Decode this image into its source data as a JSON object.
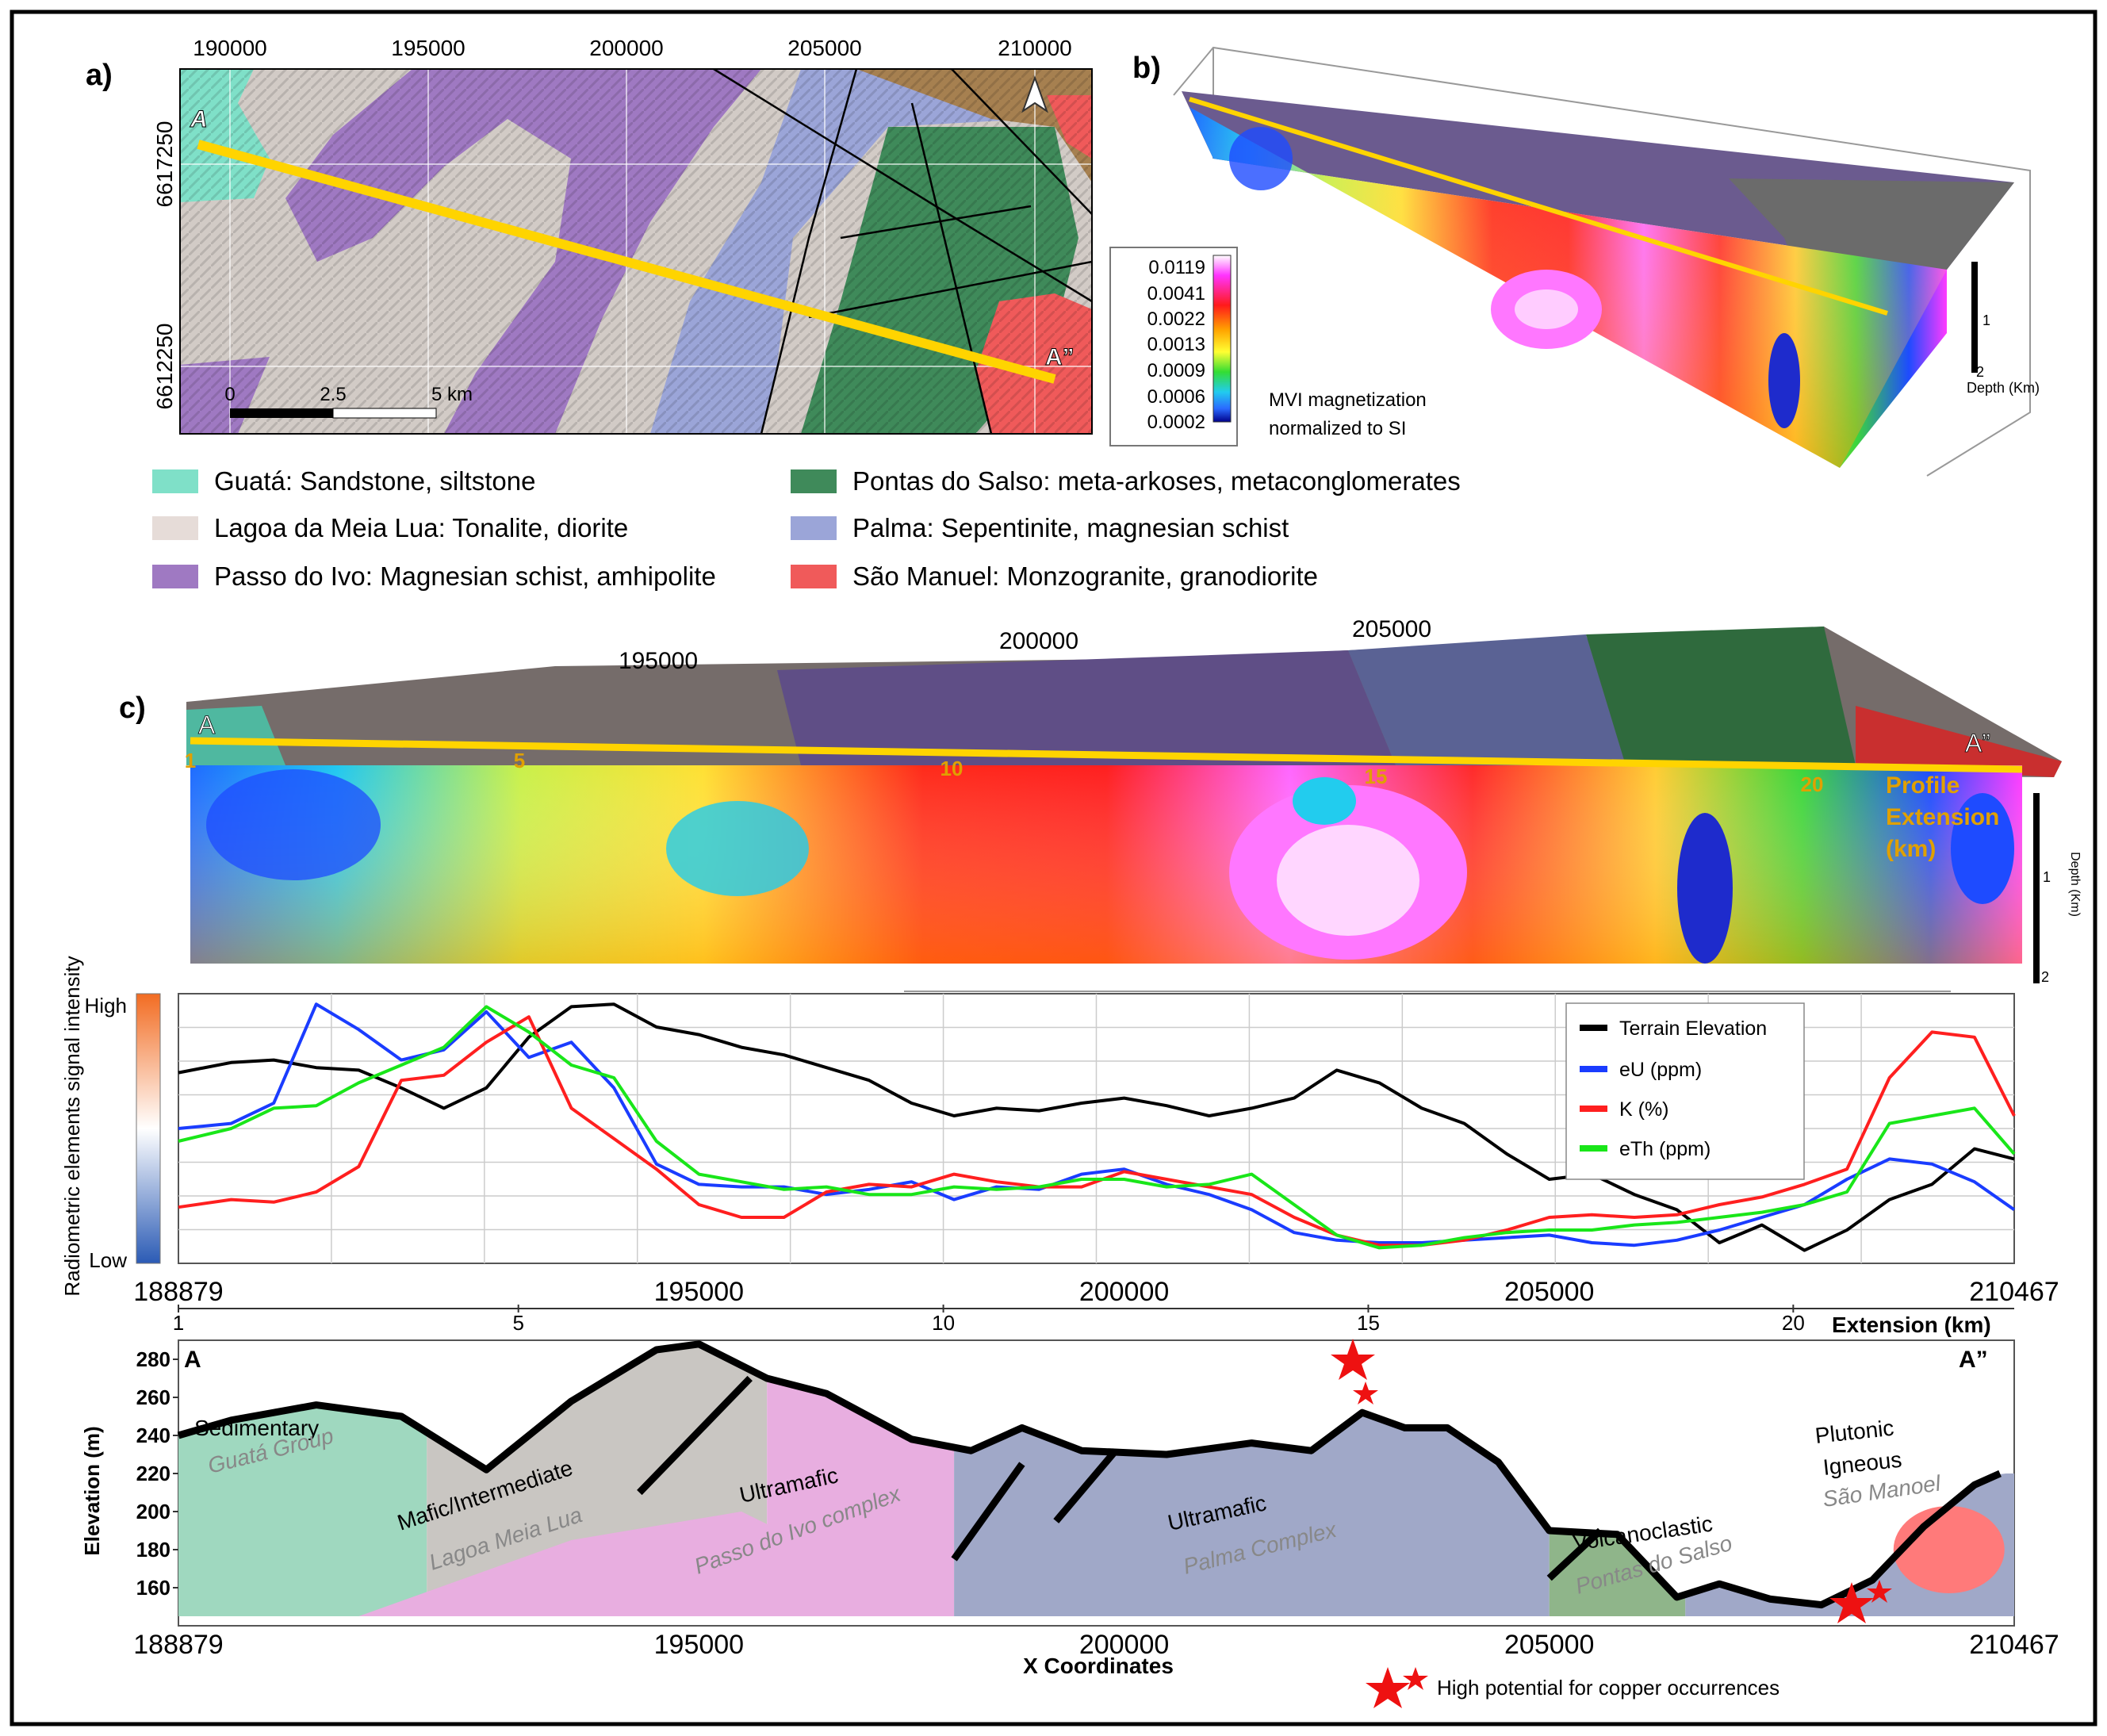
{
  "panel_a": {
    "label": "a)",
    "x_ticks": [
      "190000",
      "195000",
      "200000",
      "205000",
      "210000"
    ],
    "y_ticks": [
      "6617250",
      "6612250"
    ],
    "profile_start": "A",
    "profile_end": "A”",
    "north_arrow": "north-arrow-icon",
    "scale_labels": [
      "0",
      "2.5",
      "5 km"
    ]
  },
  "panel_b": {
    "label": "b)",
    "colorbar_values": [
      "0.0119",
      "0.0041",
      "0.0022",
      "0.0013",
      "0.0009",
      "0.0006",
      "0.0002"
    ],
    "colorbar_title_line1": "MVI magnetization",
    "colorbar_title_line2": "normalized to SI",
    "depth_ticks": [
      "1",
      "2"
    ],
    "depth_label": "Depth (Km)"
  },
  "legend": [
    {
      "text": "Guatá: Sandstone, siltstone",
      "color": "#7fe0c8"
    },
    {
      "text": "Lagoa da Meia Lua: Tonalite, diorite",
      "color": "#e6dcd8"
    },
    {
      "text": "Passo do Ivo: Magnesian schist, amhipolite",
      "color": "#9f79c2"
    },
    {
      "text": "Pontas do Salso: meta-arkoses, metaconglomerates",
      "color": "#3f8a5a"
    },
    {
      "text": "Palma: Sepentinite, magnesian schist",
      "color": "#9ba5d8"
    },
    {
      "text": "São Manuel: Monzogranite, granodiorite",
      "color": "#f05a5a"
    }
  ],
  "panel_c": {
    "label": "c)",
    "x_ticks": [
      "195000",
      "200000",
      "205000"
    ],
    "profile_start": "A",
    "profile_end": "A”",
    "extension_ticks": [
      "1",
      "5",
      "10",
      "15",
      "20"
    ],
    "extension_label_1": "Profile",
    "extension_label_2": "Extension",
    "extension_label_3": "(km)",
    "depth_ticks": [
      "1",
      "2"
    ],
    "depth_label": "Depth (Km)"
  },
  "chart_data": [
    {
      "type": "line",
      "title": "",
      "ylabel": "Radiometric elements signal intensity",
      "y_high_label": "High",
      "y_low_label": "Low",
      "xlim": [
        188879,
        210467
      ],
      "x_ticks": [
        "188879",
        "195000",
        "200000",
        "205000",
        "210467"
      ],
      "legend_position": "top-right",
      "x": [
        188879,
        189500,
        190000,
        190500,
        191000,
        191500,
        192000,
        192500,
        193000,
        193500,
        194000,
        194500,
        195000,
        195500,
        196000,
        196500,
        197000,
        197500,
        198000,
        198500,
        199000,
        199500,
        200000,
        200500,
        201000,
        201500,
        202000,
        202500,
        203000,
        203500,
        204000,
        204500,
        205000,
        205500,
        206000,
        206500,
        207000,
        207500,
        208000,
        208500,
        209000,
        209500,
        210000,
        210467
      ],
      "series": [
        {
          "name": "Terrain Elevation",
          "color": "#000000",
          "values": [
            0.72,
            0.76,
            0.77,
            0.74,
            0.73,
            0.66,
            0.58,
            0.66,
            0.86,
            0.98,
            0.99,
            0.9,
            0.87,
            0.82,
            0.79,
            0.74,
            0.69,
            0.6,
            0.55,
            0.58,
            0.57,
            0.6,
            0.62,
            0.59,
            0.55,
            0.58,
            0.62,
            0.73,
            0.68,
            0.58,
            0.52,
            0.4,
            0.3,
            0.32,
            0.24,
            0.18,
            0.05,
            0.12,
            0.02,
            0.1,
            0.22,
            0.28,
            0.42,
            0.38
          ]
        },
        {
          "name": "eU (ppm)",
          "color": "#1a3cff",
          "values": [
            0.5,
            0.52,
            0.6,
            0.99,
            0.89,
            0.77,
            0.81,
            0.96,
            0.78,
            0.84,
            0.66,
            0.36,
            0.28,
            0.27,
            0.27,
            0.24,
            0.26,
            0.29,
            0.22,
            0.27,
            0.26,
            0.32,
            0.34,
            0.28,
            0.24,
            0.18,
            0.09,
            0.06,
            0.05,
            0.05,
            0.06,
            0.07,
            0.08,
            0.05,
            0.04,
            0.06,
            0.1,
            0.15,
            0.2,
            0.3,
            0.38,
            0.36,
            0.29,
            0.18
          ]
        },
        {
          "name": "K (%)",
          "color": "#ff1f1f",
          "values": [
            0.19,
            0.22,
            0.21,
            0.25,
            0.35,
            0.69,
            0.71,
            0.84,
            0.94,
            0.58,
            0.46,
            0.34,
            0.2,
            0.15,
            0.15,
            0.25,
            0.28,
            0.27,
            0.32,
            0.29,
            0.27,
            0.27,
            0.33,
            0.3,
            0.27,
            0.24,
            0.15,
            0.08,
            0.04,
            0.04,
            0.06,
            0.1,
            0.15,
            0.16,
            0.15,
            0.16,
            0.2,
            0.23,
            0.28,
            0.34,
            0.7,
            0.88,
            0.86,
            0.55
          ]
        },
        {
          "name": "eTh (ppm)",
          "color": "#19e619",
          "values": [
            0.45,
            0.5,
            0.58,
            0.59,
            0.68,
            0.75,
            0.82,
            0.98,
            0.88,
            0.75,
            0.7,
            0.45,
            0.32,
            0.29,
            0.26,
            0.27,
            0.24,
            0.24,
            0.27,
            0.26,
            0.27,
            0.3,
            0.3,
            0.27,
            0.28,
            0.32,
            0.2,
            0.08,
            0.03,
            0.04,
            0.07,
            0.09,
            0.1,
            0.1,
            0.12,
            0.13,
            0.15,
            0.17,
            0.2,
            0.25,
            0.52,
            0.55,
            0.58,
            0.4
          ]
        }
      ]
    },
    {
      "type": "area",
      "title": "",
      "xlabel": "X Coordinates",
      "ylabel": "Elevation (m)",
      "ylim": [
        140,
        290
      ],
      "xlim": [
        188879,
        210467
      ],
      "x_ticks": [
        "188879",
        "195000",
        "200000",
        "205000",
        "210467"
      ],
      "y_ticks": [
        160,
        180,
        200,
        220,
        240,
        260,
        280
      ],
      "extension_ticks": [
        1,
        5,
        10,
        15,
        20
      ],
      "extension_label": "Extension (km)",
      "profile_start": "A",
      "profile_end": "A”",
      "terrain_x": [
        188879,
        189500,
        190500,
        191500,
        192500,
        193500,
        194500,
        195000,
        195800,
        196500,
        197500,
        198200,
        198800,
        199500,
        200500,
        201500,
        202200,
        202800,
        203300,
        203800,
        204400,
        205000,
        205800,
        206500,
        207000,
        207600,
        208200,
        208800,
        209400,
        210000,
        210300
      ],
      "terrain_y": [
        240,
        248,
        256,
        250,
        222,
        258,
        285,
        288,
        270,
        262,
        238,
        232,
        244,
        232,
        230,
        236,
        232,
        252,
        244,
        244,
        226,
        190,
        188,
        155,
        162,
        154,
        151,
        164,
        192,
        214,
        220
      ],
      "units": [
        {
          "name": "Sedimentary",
          "sub": "Guatá Group",
          "color": "#9fd8bf"
        },
        {
          "name": "Mafic/Intermediate",
          "sub": "Lagoa Meia Lua",
          "color": "#c9c6c2"
        },
        {
          "name": "Ultramafic",
          "sub": "Passo do Ivo complex",
          "color": "#e8aee0"
        },
        {
          "name": "Ultramafic",
          "sub": "Palma Complex",
          "color": "#a0a8c8"
        },
        {
          "name": "Volcanoclastic",
          "sub": "Pontas do Salso",
          "color": "#8fb58a"
        },
        {
          "name": "Plutonic",
          "name2": "Igneous",
          "sub": "São Manoel",
          "color": "#ff7a7a"
        }
      ],
      "copper_legend": "High potential for copper occurrences"
    }
  ]
}
